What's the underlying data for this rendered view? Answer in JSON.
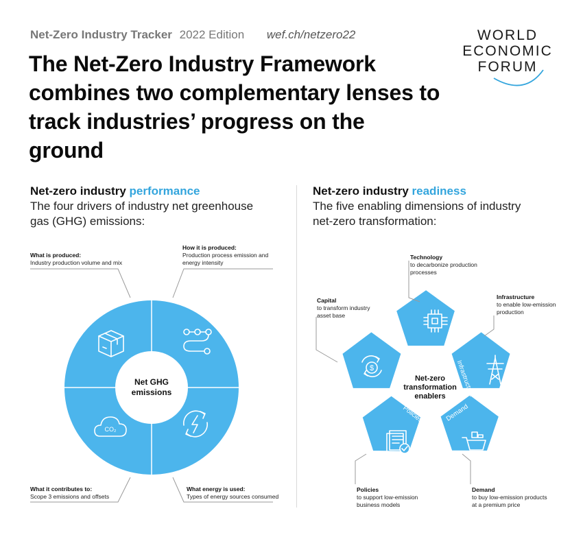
{
  "header": {
    "brand": "Net-Zero Industry Tracker",
    "edition": "2022 Edition",
    "url": "wef.ch/netzero22"
  },
  "title": "The Net-Zero Industry Framework combines two complementary lenses to track industries’ progress on the ground",
  "logo": {
    "line1": "WORLD",
    "line2": "ECONOMIC",
    "line3": "FORUM"
  },
  "colors": {
    "accent": "#33a5dd",
    "shape_fill": "#4cb5ec",
    "connector": "#9a9a9a"
  },
  "performance": {
    "title_prefix": "Net-zero industry ",
    "title_accent": "performance",
    "subtitle": "The four drivers of industry net greenhouse gas (GHG) emissions:",
    "center_line1": "Net GHG",
    "center_line2": "emissions",
    "drivers": [
      {
        "label": "What is produced:",
        "desc": "Industry production volume and mix",
        "icon": "box-icon"
      },
      {
        "label": "How it is produced:",
        "desc": "Production process emission and energy intensity",
        "icon": "process-flow-icon"
      },
      {
        "label": "What it contributes to:",
        "desc": "Scope 3 emissions and offsets",
        "icon": "co2-cloud-icon"
      },
      {
        "label": "What energy is used:",
        "desc": "Types of energy sources consumed",
        "icon": "energy-bolt-icon"
      }
    ]
  },
  "readiness": {
    "title_prefix": "Net-zero industry ",
    "title_accent": "readiness",
    "subtitle": "The five enabling dimensions of industry net-zero transformation:",
    "center_line1": "Net-zero",
    "center_line2": "transformation",
    "center_line3": "enablers",
    "dimensions": [
      {
        "name": "Technology",
        "label": "Technology",
        "desc": "to decarbonize production processes",
        "icon": "chip-icon"
      },
      {
        "name": "Infrastructure",
        "label": "Infrastructure",
        "desc": "to enable low-emission production",
        "icon": "pylon-icon"
      },
      {
        "name": "Demand",
        "label": "Demand",
        "desc": "to buy low-emission products at a premium price",
        "icon": "cart-icon"
      },
      {
        "name": "Policies",
        "label": "Policies",
        "desc": "to support low-emission business models",
        "icon": "document-check-icon"
      },
      {
        "name": "Capital",
        "label": "Capital",
        "desc": "to transform industry asset base",
        "icon": "dollar-cycle-icon"
      }
    ]
  }
}
